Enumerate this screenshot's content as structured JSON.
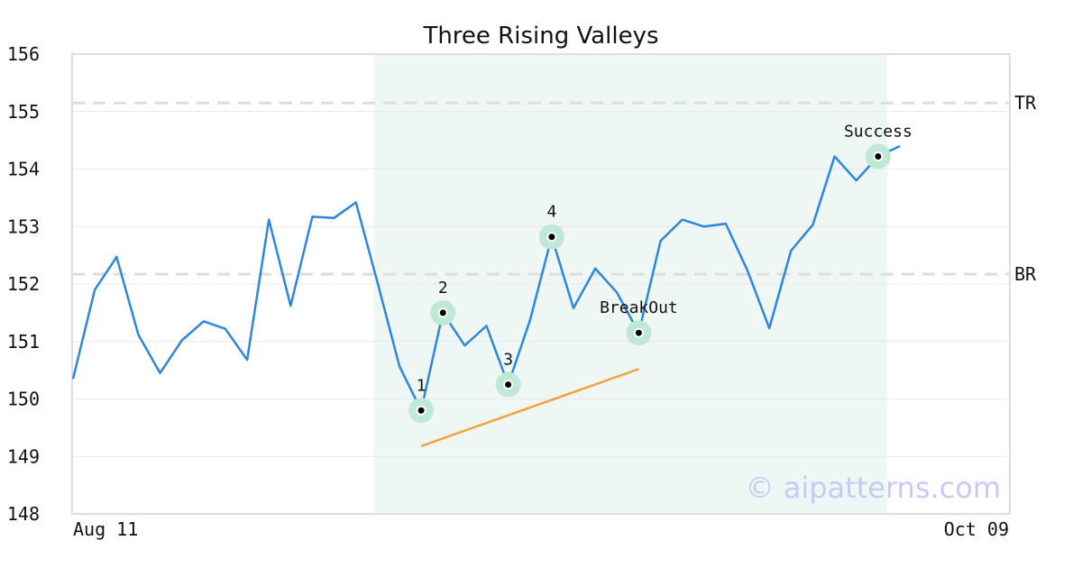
{
  "chart_data": {
    "type": "line",
    "title": "Three Rising Valleys",
    "x_tick_labels": [
      "Aug 11",
      "Oct 09"
    ],
    "ylim": [
      148,
      156
    ],
    "y_ticks": [
      148,
      149,
      150,
      151,
      152,
      153,
      154,
      155,
      156
    ],
    "grid": "horizontal",
    "series": [
      {
        "values": [
          150.35,
          151.9,
          152.47,
          151.12,
          150.45,
          151.02,
          151.35,
          151.22,
          150.68,
          153.12,
          151.62,
          153.17,
          153.15,
          153.42,
          152.02,
          150.57,
          149.8,
          151.5,
          150.93,
          151.27,
          150.25,
          151.37,
          152.82,
          151.58,
          152.27,
          151.85,
          151.15,
          152.75,
          153.12,
          153.0,
          153.05,
          152.23,
          151.23,
          152.58,
          153.03,
          154.22,
          153.8,
          154.22,
          154.4
        ]
      }
    ],
    "highlight_region": {
      "start_index": 14,
      "end_index": 37
    },
    "reference_lines": [
      {
        "label": "TR",
        "value": 155.15
      },
      {
        "label": "BR",
        "value": 152.17
      }
    ],
    "trendline": {
      "start_index": 16,
      "start_value": 149.18,
      "end_index": 26,
      "end_value": 150.52
    },
    "markers": [
      {
        "label": "1",
        "index": 16,
        "value": 149.8
      },
      {
        "label": "2",
        "index": 17,
        "value": 151.5
      },
      {
        "label": "3",
        "index": 20,
        "value": 150.25
      },
      {
        "label": "4",
        "index": 22,
        "value": 152.82
      },
      {
        "label": "BreakOut",
        "index": 26,
        "value": 151.15
      },
      {
        "label": "Success",
        "index": 37,
        "value": 154.22
      }
    ],
    "colors": {
      "line": "#2e86de",
      "trendline": "#f4a142",
      "highlight": "#eef7f3",
      "marker_halo": "#bfe9d6",
      "marker_dot": "#000000",
      "reference": "#dddddd"
    }
  },
  "watermark": "© aipatterns.com"
}
